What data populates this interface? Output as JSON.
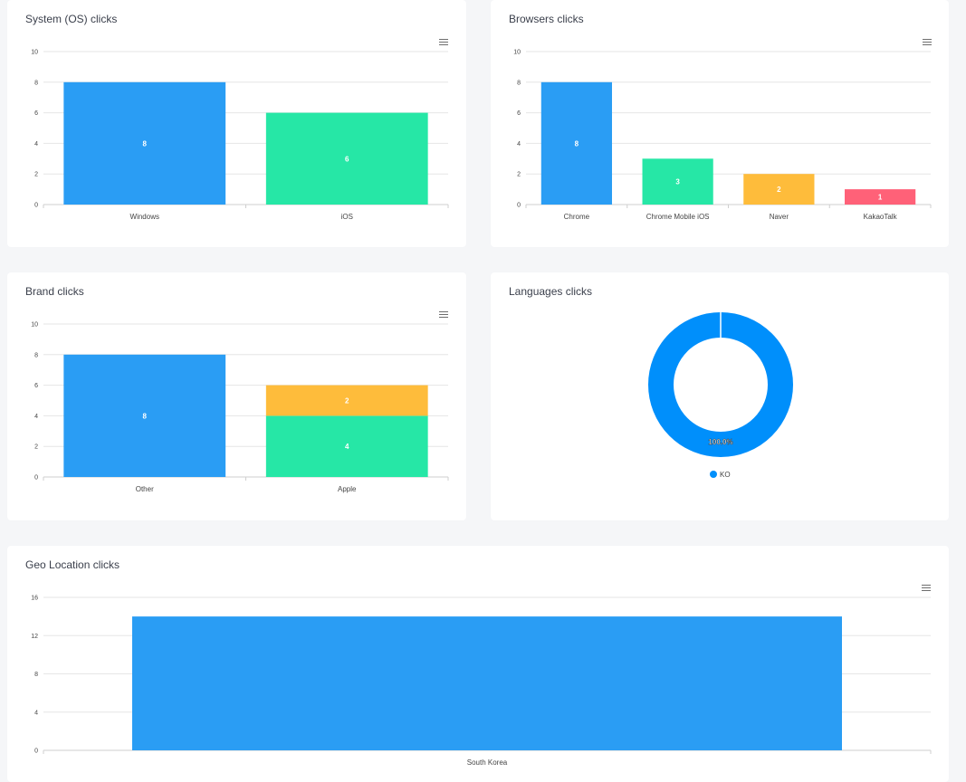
{
  "colors": {
    "blue": "#2a9df4",
    "green": "#26e7a6",
    "orange": "#febc3b",
    "red": "#ff6178",
    "donut_blue": "#008ffb",
    "grid": "#e6e6e6"
  },
  "os_panel": {
    "title": "System (OS) clicks",
    "menu_icon": "hamburger-menu-icon"
  },
  "browsers_panel": {
    "title": "Browsers clicks",
    "menu_icon": "hamburger-menu-icon"
  },
  "brand_panel": {
    "title": "Brand clicks",
    "menu_icon": "hamburger-menu-icon"
  },
  "languages_panel": {
    "title": "Languages clicks"
  },
  "geo_panel": {
    "title": "Geo Location clicks",
    "menu_icon": "hamburger-menu-icon"
  },
  "chart_data": [
    {
      "id": "os",
      "type": "bar",
      "title": "System (OS) clicks",
      "categories": [
        "Windows",
        "iOS"
      ],
      "values": [
        8,
        6
      ],
      "bar_colors": [
        "#2a9df4",
        "#26e7a6"
      ],
      "ylim": [
        0,
        10
      ],
      "yticks": [
        0,
        2,
        4,
        6,
        8,
        10
      ],
      "grid": true
    },
    {
      "id": "browsers",
      "type": "bar",
      "title": "Browsers clicks",
      "categories": [
        "Chrome",
        "Chrome Mobile iOS",
        "Naver",
        "KakaoTalk"
      ],
      "values": [
        8,
        3,
        2,
        1
      ],
      "bar_colors": [
        "#2a9df4",
        "#26e7a6",
        "#febc3b",
        "#ff6178"
      ],
      "ylim": [
        0,
        10
      ],
      "yticks": [
        0,
        2,
        4,
        6,
        8,
        10
      ],
      "grid": true
    },
    {
      "id": "brand",
      "type": "bar",
      "stacked": true,
      "title": "Brand clicks",
      "categories": [
        "Other",
        "Apple"
      ],
      "segments": [
        [
          {
            "value": 8,
            "color": "#2a9df4"
          }
        ],
        [
          {
            "value": 4,
            "color": "#26e7a6"
          },
          {
            "value": 2,
            "color": "#febc3b"
          }
        ]
      ],
      "ylim": [
        0,
        10
      ],
      "yticks": [
        0,
        2,
        4,
        6,
        8,
        10
      ],
      "grid": true
    },
    {
      "id": "languages",
      "type": "pie",
      "donut": true,
      "title": "Languages clicks",
      "slices": [
        {
          "label": "KO",
          "value": 100,
          "display": "100.0%",
          "color": "#008ffb"
        }
      ],
      "legend": "bottom"
    },
    {
      "id": "geo",
      "type": "bar",
      "title": "Geo Location clicks",
      "categories": [
        "South Korea"
      ],
      "values": [
        14
      ],
      "bar_colors": [
        "#2a9df4"
      ],
      "ylim": [
        0,
        16
      ],
      "yticks": [
        0,
        4,
        8,
        12,
        16
      ],
      "grid": true
    }
  ]
}
